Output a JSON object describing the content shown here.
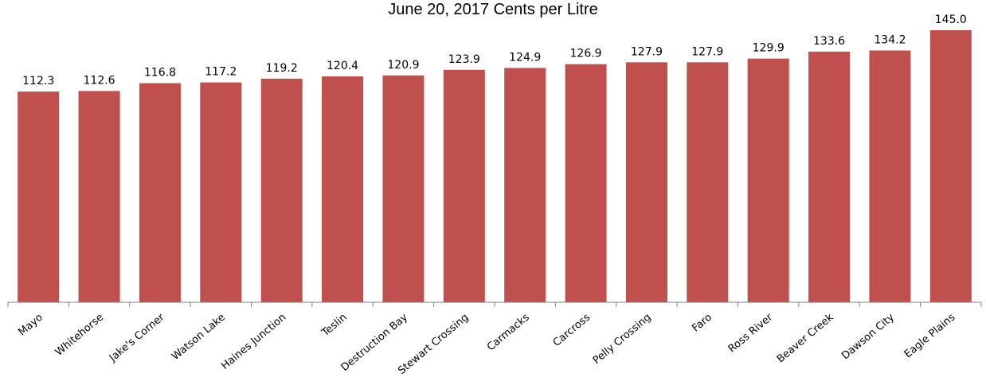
{
  "chart_data": {
    "type": "bar",
    "title": "June 20, 2017 Cents per Litre",
    "xlabel": "",
    "ylabel": "",
    "categories": [
      "Mayo",
      "Whitehorse",
      "Jake's Corner",
      "Watson Lake",
      "Haines Junction",
      "Teslin",
      "Destruction Bay",
      "Stewart Crossing",
      "Carmacks",
      "Carcross",
      "Pelly Crossing",
      "Faro",
      "Ross River",
      "Beaver Creek",
      "Dawson City",
      "Eagle Plains"
    ],
    "values": [
      112.3,
      112.6,
      116.8,
      117.2,
      119.2,
      120.4,
      120.9,
      123.9,
      124.9,
      126.9,
      127.9,
      127.9,
      129.9,
      133.6,
      134.2,
      145.0
    ],
    "value_labels": [
      "112.3",
      "112.6",
      "116.8",
      "117.2",
      "119.2",
      "120.4",
      "120.9",
      "123.9",
      "124.9",
      "126.9",
      "127.9",
      "127.9",
      "129.9",
      "133.6",
      "134.2",
      "145.0"
    ],
    "ylim": [
      0,
      145.0
    ],
    "grid": false,
    "bar_color": "#c0504d",
    "axis_color": "#808080"
  }
}
